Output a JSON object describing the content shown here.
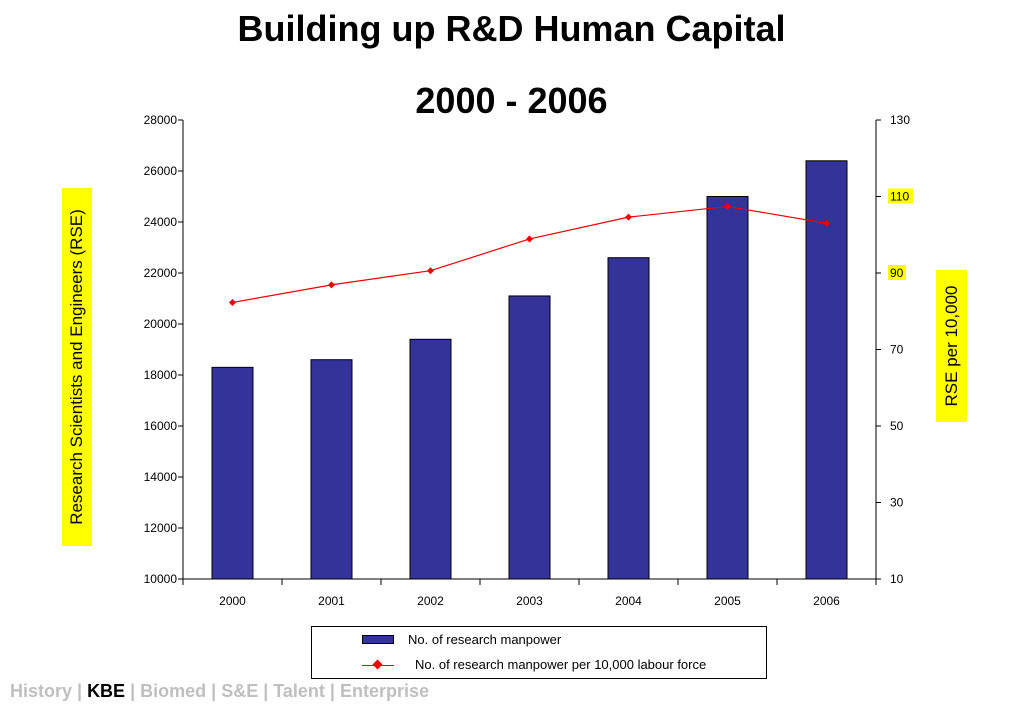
{
  "chart_data": {
    "type": "bar",
    "title": "Building up R&D Human Capital",
    "subtitle": "2000 - 2006",
    "categories": [
      "2000",
      "2001",
      "2002",
      "2003",
      "2004",
      "2005",
      "2006"
    ],
    "ylabel": "Research Scientists and Engineers (RSE)",
    "y2label": "RSE per 10,000",
    "ylim": [
      10000,
      28000
    ],
    "y2lim": [
      10,
      130
    ],
    "yticks": [
      "28000",
      "26000",
      "24000",
      "22000",
      "20000",
      "18000",
      "16000",
      "14000",
      "12000",
      "10000"
    ],
    "y2ticks": [
      "130",
      "110",
      "90",
      "70",
      "50",
      "30",
      "10"
    ],
    "y2ticks_highlighted": [
      "110",
      "90"
    ],
    "grid": false,
    "legend_position": "bottom",
    "series": [
      {
        "name": "No. of research manpower",
        "type": "bar",
        "axis": "left",
        "color": "#333399",
        "values": [
          18300,
          18600,
          19400,
          21100,
          22600,
          25000,
          26400
        ]
      },
      {
        "name": "No. of research manpower per 10,000 labour force",
        "type": "line",
        "axis": "right",
        "color": "#ee0000",
        "values": [
          82.3,
          86.9,
          90.6,
          98.9,
          104.6,
          107.4,
          103.0
        ]
      }
    ]
  },
  "footer": {
    "items": [
      {
        "label": "History",
        "active": false
      },
      {
        "label": "KBE",
        "active": true
      },
      {
        "label": "Biomed",
        "active": false
      },
      {
        "label": "S&E",
        "active": false
      },
      {
        "label": "Talent",
        "active": false
      },
      {
        "label": "Enterprise",
        "active": false
      }
    ],
    "separator": "|"
  },
  "colors": {
    "bar": "#333399",
    "line": "#ee0000",
    "axis_title_background": "#ffff00",
    "footer_inactive": "#bfbfbf",
    "footer_active": "#000000"
  }
}
